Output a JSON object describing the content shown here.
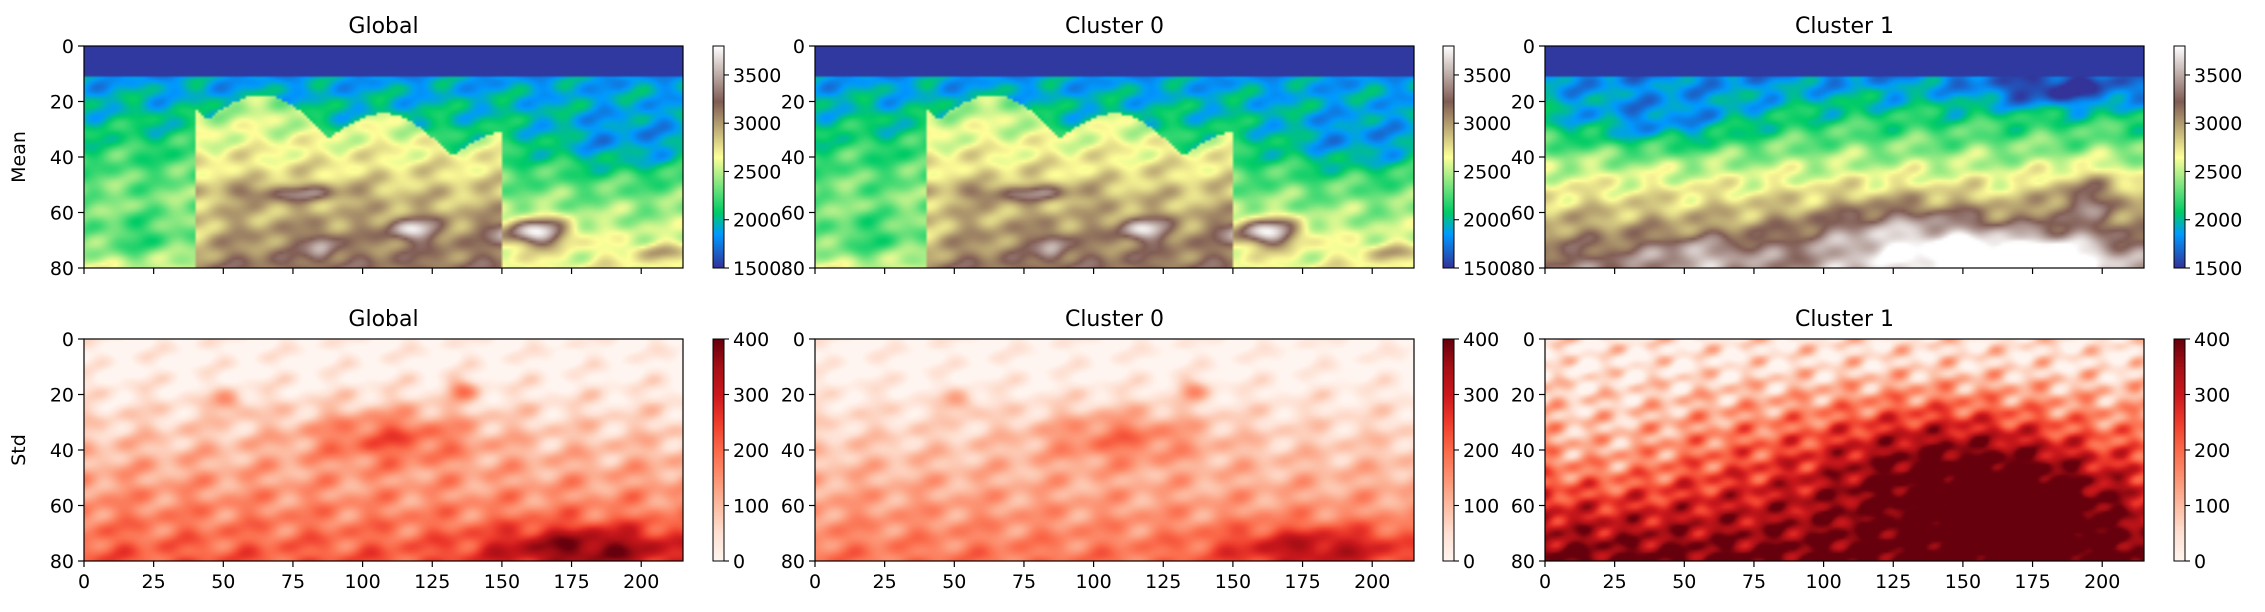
{
  "chart_data": {
    "type": "heatmap",
    "layout": "2 rows x 3 columns of heatmaps, each with its own colorbar",
    "x_ticks": [
      0,
      25,
      50,
      75,
      100,
      125,
      150,
      175,
      200
    ],
    "y_ticks": [
      0,
      20,
      40,
      60,
      80
    ],
    "x_range": [
      0,
      215
    ],
    "y_range": [
      0,
      80
    ],
    "rows": [
      {
        "ylabel": "Mean",
        "colormap": "terrain",
        "color_range": [
          1500,
          3800
        ],
        "colorbar_ticks": [
          1500,
          2000,
          2500,
          3000,
          3500
        ],
        "panels": [
          {
            "title": "Global",
            "variant": "mean-global"
          },
          {
            "title": "Cluster 0",
            "variant": "mean-cluster0"
          },
          {
            "title": "Cluster 1",
            "variant": "mean-cluster1"
          }
        ]
      },
      {
        "ylabel": "Std",
        "colormap": "Reds",
        "color_range": [
          0,
          400
        ],
        "colorbar_ticks": [
          0,
          100,
          200,
          300,
          400
        ],
        "panels": [
          {
            "title": "Global",
            "variant": "std-global"
          },
          {
            "title": "Cluster 0",
            "variant": "std-cluster0"
          },
          {
            "title": "Cluster 1",
            "variant": "std-cluster1"
          }
        ]
      }
    ]
  }
}
